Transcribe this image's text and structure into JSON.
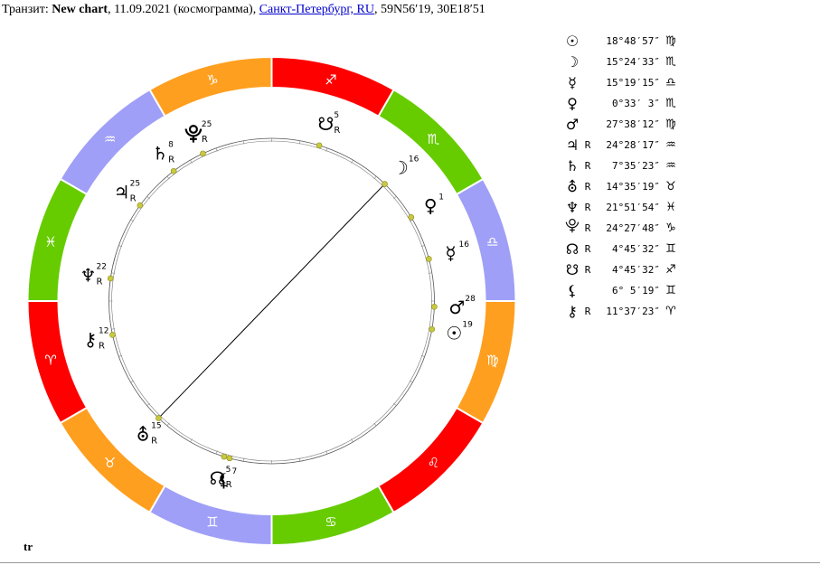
{
  "header": {
    "prefix": "Транзит: ",
    "chart_name": "New chart",
    "details": ", 11.09.2021 (космограмма), ",
    "place": "Санкт-Петербург, RU",
    "coords": ", 59N56′19, 30E18′51"
  },
  "footer": {
    "tag": "tr"
  },
  "colors": {
    "fire": "#ff0000",
    "earth": "#ff9f1f",
    "air": "#9f9ff7",
    "water": "#66cc00",
    "dot": "#c9c93f"
  },
  "wheel": {
    "signs": [
      {
        "glyph": "♈",
        "start_angle": 180,
        "element": "fire"
      },
      {
        "glyph": "♉",
        "start_angle": 210,
        "element": "earth"
      },
      {
        "glyph": "♊",
        "start_angle": 240,
        "element": "air"
      },
      {
        "glyph": "♋",
        "start_angle": 270,
        "element": "water"
      },
      {
        "glyph": "♌",
        "start_angle": 300,
        "element": "fire"
      },
      {
        "glyph": "♍",
        "start_angle": 330,
        "element": "earth"
      },
      {
        "glyph": "♎",
        "start_angle": 0,
        "element": "air"
      },
      {
        "glyph": "♏",
        "start_angle": 30,
        "element": "water"
      },
      {
        "glyph": "♐",
        "start_angle": 60,
        "element": "fire"
      },
      {
        "glyph": "♑",
        "start_angle": 90,
        "element": "earth"
      },
      {
        "glyph": "♒",
        "start_angle": 120,
        "element": "air"
      },
      {
        "glyph": "♓",
        "start_angle": 150,
        "element": "water"
      }
    ],
    "planets": [
      {
        "id": "sun",
        "glyph": "☉",
        "degree": "19",
        "retro": "",
        "angle": 350
      },
      {
        "id": "moon",
        "glyph": "☽",
        "degree": "16",
        "retro": "",
        "angle": 46
      },
      {
        "id": "mercury",
        "glyph": "☿",
        "degree": "16",
        "retro": "",
        "angle": 15
      },
      {
        "id": "venus",
        "glyph": "♀",
        "degree": "1",
        "retro": "",
        "angle": 31
      },
      {
        "id": "mars",
        "glyph": "♂",
        "degree": "28",
        "retro": "",
        "angle": 358
      },
      {
        "id": "jupiter",
        "glyph": "♃",
        "degree": "25",
        "retro": "R",
        "angle": 144
      },
      {
        "id": "saturn",
        "glyph": "♄",
        "degree": "8",
        "retro": "R",
        "angle": 127
      },
      {
        "id": "uranus",
        "glyph": "⛢",
        "degree": "15",
        "retro": "R",
        "angle": 226
      },
      {
        "id": "neptune",
        "glyph": "♆",
        "degree": "22",
        "retro": "R",
        "angle": 172
      },
      {
        "id": "pluto",
        "glyph": "⯓",
        "degree": "25",
        "retro": "R",
        "angle": 115
      },
      {
        "id": "node",
        "glyph": "☊",
        "degree": "5",
        "retro": "R",
        "angle": 253
      },
      {
        "id": "southnode",
        "glyph": "☋",
        "degree": "5",
        "retro": "R",
        "angle": 73
      },
      {
        "id": "lilith",
        "glyph": "⚸",
        "degree": "7",
        "retro": "",
        "angle": 255
      },
      {
        "id": "chiron",
        "glyph": "⚷",
        "degree": "12",
        "retro": "R",
        "angle": 192
      }
    ],
    "aspects": [
      {
        "from": "moon",
        "to": "uranus"
      }
    ]
  },
  "positions": [
    {
      "glyph": "☉",
      "retro": "",
      "pos": "18°48′57″",
      "sign": "♍"
    },
    {
      "glyph": "☽",
      "retro": "",
      "pos": "15°24′33″",
      "sign": "♏"
    },
    {
      "glyph": "☿",
      "retro": "",
      "pos": "15°19′15″",
      "sign": "♎"
    },
    {
      "glyph": "♀",
      "retro": "",
      "pos": "0°33′ 3″",
      "sign": "♏"
    },
    {
      "glyph": "♂",
      "retro": "",
      "pos": "27°38′12″",
      "sign": "♍"
    },
    {
      "glyph": "♃",
      "retro": "R",
      "pos": "24°28′17″",
      "sign": "♒"
    },
    {
      "glyph": "♄",
      "retro": "R",
      "pos": "7°35′23″",
      "sign": "♒"
    },
    {
      "glyph": "⛢",
      "retro": "R",
      "pos": "14°35′19″",
      "sign": "♉"
    },
    {
      "glyph": "♆",
      "retro": "R",
      "pos": "21°51′54″",
      "sign": "♓"
    },
    {
      "glyph": "⯓",
      "retro": "R",
      "pos": "24°27′48″",
      "sign": "♑"
    },
    {
      "glyph": "☊",
      "retro": "R",
      "pos": "4°45′32″",
      "sign": "♊"
    },
    {
      "glyph": "☋",
      "retro": "R",
      "pos": "4°45′32″",
      "sign": "♐"
    },
    {
      "glyph": "⚸",
      "retro": "",
      "pos": "6° 5′19″",
      "sign": "♊"
    },
    {
      "glyph": "⚷",
      "retro": "R",
      "pos": "11°37′23″",
      "sign": "♈"
    }
  ]
}
